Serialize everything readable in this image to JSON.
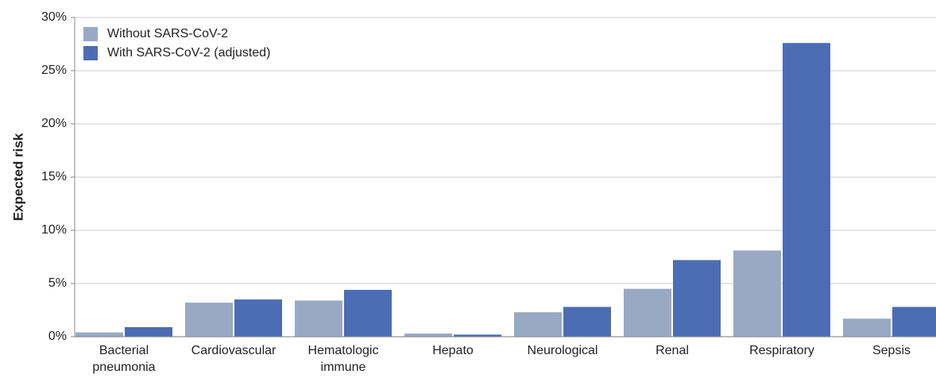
{
  "chart_data": {
    "type": "bar",
    "y_label": "Expected risk",
    "categories": [
      "Bacterial pneumonia",
      "Cardiovascular",
      "Hematologic immune",
      "Hepato",
      "Neurological",
      "Renal",
      "Respiratory",
      "Sepsis"
    ],
    "series": [
      {
        "name": "Without SARS-CoV-2",
        "color": "#9aa9c3",
        "values": [
          0.4,
          3.2,
          3.4,
          0.3,
          2.3,
          4.5,
          8.1,
          1.7
        ]
      },
      {
        "name": "With SARS-CoV-2 (adjusted)",
        "color": "#4c6db4",
        "values": [
          0.9,
          3.5,
          4.4,
          0.2,
          2.8,
          7.2,
          27.6,
          2.8
        ]
      }
    ],
    "ylim": [
      0,
      30
    ],
    "yticks": [
      {
        "value": 0,
        "label": "0%"
      },
      {
        "value": 5,
        "label": "5%"
      },
      {
        "value": 10,
        "label": "10%"
      },
      {
        "value": 15,
        "label": "15%"
      },
      {
        "value": 20,
        "label": "20%"
      },
      {
        "value": 25,
        "label": "25%"
      },
      {
        "value": 30,
        "label": "30%"
      }
    ],
    "grid": true,
    "legend": "top-left"
  }
}
